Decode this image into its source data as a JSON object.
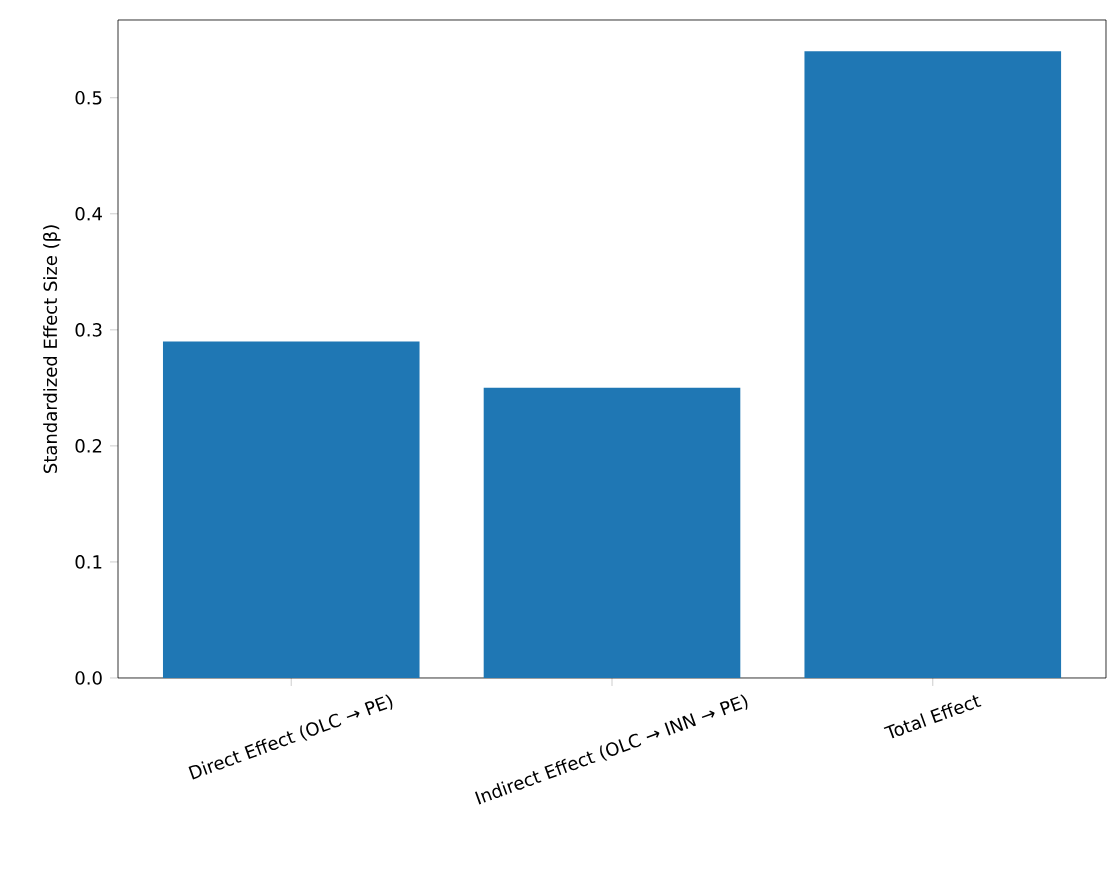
{
  "chart_data": {
    "type": "bar",
    "ylabel": "Standardized Effect Size (β)",
    "categories": [
      "Direct Effect (OLC → PE)",
      "Indirect Effect (OLC → INN → PE)",
      "Total Effect"
    ],
    "values": [
      0.29,
      0.25,
      0.54
    ],
    "color": "#1f77b4",
    "ylim": [
      0,
      0.567
    ],
    "yticks": [
      {
        "value": 0,
        "label": "0.0"
      },
      0.1,
      0.2,
      0.3,
      0.4,
      0.5
    ]
  }
}
